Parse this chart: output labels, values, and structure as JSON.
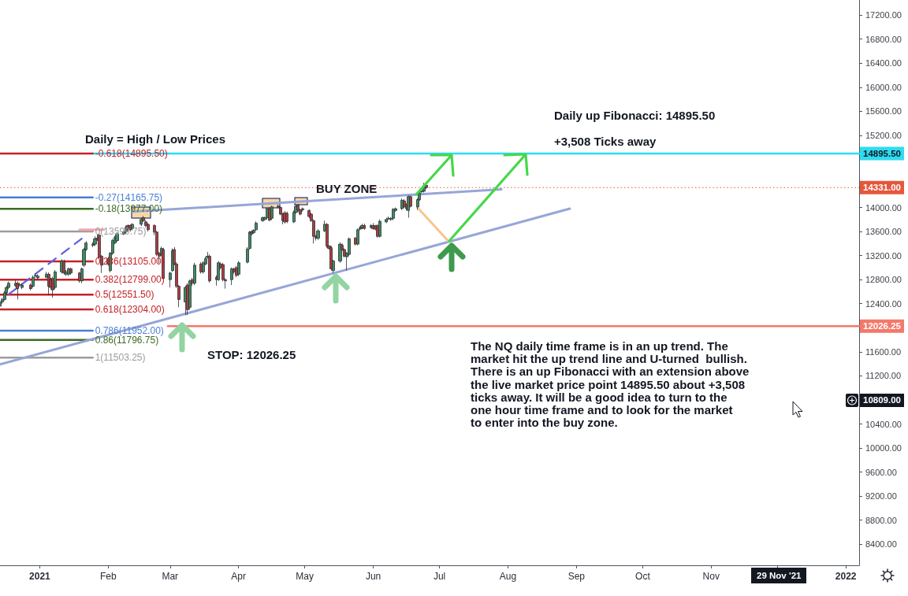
{
  "chart_data": {
    "type": "candlestick",
    "x": [
      "2020-12-14",
      "2020-12-15",
      "2020-12-16",
      "2020-12-17",
      "2020-12-18",
      "2020-12-21",
      "2020-12-22",
      "2020-12-23",
      "2020-12-24",
      "2020-12-28",
      "2020-12-29",
      "2020-12-30",
      "2020-12-31",
      "2021-01-04",
      "2021-01-05",
      "2021-01-06",
      "2021-01-07",
      "2021-01-08",
      "2021-01-11",
      "2021-01-12",
      "2021-01-13",
      "2021-01-14",
      "2021-01-15",
      "2021-01-19",
      "2021-01-20",
      "2021-01-21",
      "2021-01-22",
      "2021-01-25",
      "2021-01-26",
      "2021-01-27",
      "2021-01-28",
      "2021-01-29",
      "2021-02-01",
      "2021-02-02",
      "2021-02-03",
      "2021-02-04",
      "2021-02-05",
      "2021-02-08",
      "2021-02-09",
      "2021-02-10",
      "2021-02-11",
      "2021-02-12",
      "2021-02-16",
      "2021-02-17",
      "2021-02-18",
      "2021-02-19",
      "2021-02-22",
      "2021-02-23",
      "2021-02-24",
      "2021-02-25",
      "2021-02-26",
      "2021-03-01",
      "2021-03-02",
      "2021-03-03",
      "2021-03-04",
      "2021-03-05",
      "2021-03-08",
      "2021-03-09",
      "2021-03-10",
      "2021-03-11",
      "2021-03-12",
      "2021-03-15",
      "2021-03-16",
      "2021-03-17",
      "2021-03-18",
      "2021-03-19",
      "2021-03-22",
      "2021-03-23",
      "2021-03-24",
      "2021-03-25",
      "2021-03-26",
      "2021-03-29",
      "2021-03-30",
      "2021-03-31",
      "2021-04-01",
      "2021-04-05",
      "2021-04-06",
      "2021-04-07",
      "2021-04-08",
      "2021-04-09",
      "2021-04-12",
      "2021-04-13",
      "2021-04-14",
      "2021-04-15",
      "2021-04-16",
      "2021-04-19",
      "2021-04-20",
      "2021-04-21",
      "2021-04-22",
      "2021-04-23",
      "2021-04-26",
      "2021-04-27",
      "2021-04-28",
      "2021-04-29",
      "2021-04-30",
      "2021-05-03",
      "2021-05-04",
      "2021-05-05",
      "2021-05-06",
      "2021-05-07",
      "2021-05-10",
      "2021-05-11",
      "2021-05-12",
      "2021-05-13",
      "2021-05-14",
      "2021-05-17",
      "2021-05-18",
      "2021-05-19",
      "2021-05-20",
      "2021-05-21",
      "2021-05-24",
      "2021-05-25",
      "2021-05-26",
      "2021-05-27",
      "2021-05-28",
      "2021-05-31",
      "2021-06-01",
      "2021-06-02",
      "2021-06-03",
      "2021-06-04",
      "2021-06-07",
      "2021-06-08",
      "2021-06-09",
      "2021-06-10",
      "2021-06-11",
      "2021-06-14",
      "2021-06-15",
      "2021-06-16",
      "2021-06-17",
      "2021-06-18",
      "2021-06-21",
      "2021-06-22",
      "2021-06-23",
      "2021-06-24",
      "2021-06-25"
    ],
    "ohlc": [
      [
        12360,
        12460,
        12330,
        12430
      ],
      [
        12430,
        12500,
        12400,
        12470
      ],
      [
        12470,
        12610,
        12450,
        12580
      ],
      [
        12580,
        12700,
        12560,
        12670
      ],
      [
        12670,
        12770,
        12640,
        12740
      ],
      [
        12700,
        12790,
        12680,
        12740
      ],
      [
        12740,
        12770,
        12470,
        12650
      ],
      [
        12710,
        12750,
        12680,
        12720
      ],
      [
        12670,
        12740,
        12640,
        12710
      ],
      [
        12710,
        12740,
        12620,
        12650
      ],
      [
        12690,
        12870,
        12670,
        12840
      ],
      [
        12860,
        12900,
        12830,
        12870
      ],
      [
        12830,
        12890,
        12800,
        12860
      ],
      [
        12840,
        12930,
        12820,
        12890
      ],
      [
        12890,
        12920,
        12540,
        12690
      ],
      [
        12800,
        12830,
        12630,
        12670
      ],
      [
        12820,
        12850,
        12500,
        12630
      ],
      [
        12670,
        12960,
        12640,
        12930
      ],
      [
        12930,
        13140,
        12900,
        13110
      ],
      [
        13110,
        13130,
        12880,
        12910
      ],
      [
        12890,
        12960,
        12860,
        12930
      ],
      [
        12890,
        13000,
        12860,
        12980
      ],
      [
        12980,
        13000,
        12880,
        12910
      ],
      [
        12910,
        12930,
        12750,
        12780
      ],
      [
        12780,
        13000,
        12740,
        12980
      ],
      [
        13040,
        13330,
        13010,
        13300
      ],
      [
        13300,
        13440,
        13280,
        13410
      ],
      [
        13370,
        13420,
        13340,
        13390
      ],
      [
        13390,
        13520,
        13360,
        13480
      ],
      [
        13470,
        13560,
        13440,
        13490
      ],
      [
        13540,
        13570,
        13140,
        13170
      ],
      [
        13190,
        13210,
        12910,
        13040
      ],
      [
        13150,
        13180,
        13030,
        13060
      ],
      [
        12950,
        13260,
        12920,
        13240
      ],
      [
        13240,
        13480,
        13210,
        13450
      ],
      [
        13410,
        13530,
        13390,
        13500
      ],
      [
        13450,
        13590,
        13430,
        13560
      ],
      [
        13560,
        13610,
        13540,
        13590
      ],
      [
        13590,
        13700,
        13560,
        13670
      ],
      [
        13700,
        13720,
        13620,
        13650
      ],
      [
        13700,
        13720,
        13600,
        13630
      ],
      [
        13650,
        13740,
        13620,
        13720
      ],
      [
        13720,
        13830,
        13690,
        13800
      ],
      [
        13830,
        13860,
        13760,
        13780
      ],
      [
        13760,
        13790,
        13670,
        13700
      ],
      [
        13720,
        13740,
        13600,
        13630
      ],
      [
        13700,
        13720,
        13540,
        13590
      ],
      [
        13590,
        13610,
        13190,
        13220
      ],
      [
        13240,
        13260,
        13070,
        13190
      ],
      [
        13220,
        13350,
        13190,
        13320
      ],
      [
        13300,
        13330,
        12780,
        12820
      ],
      [
        12800,
        12930,
        12670,
        12910
      ],
      [
        12950,
        13320,
        12930,
        13280
      ],
      [
        13300,
        13340,
        13040,
        13060
      ],
      [
        13060,
        13090,
        12660,
        12690
      ],
      [
        12690,
        12710,
        12340,
        12470
      ],
      [
        12430,
        12700,
        12210,
        12670
      ],
      [
        12710,
        12740,
        12210,
        12300
      ],
      [
        12340,
        12800,
        12300,
        12780
      ],
      [
        12800,
        12830,
        12700,
        12740
      ],
      [
        12740,
        13080,
        12710,
        13040
      ],
      [
        13060,
        13090,
        12900,
        12930
      ],
      [
        12930,
        13110,
        12900,
        13080
      ],
      [
        13060,
        13180,
        13040,
        13150
      ],
      [
        13170,
        13260,
        13150,
        13190
      ],
      [
        13190,
        13220,
        12750,
        12780
      ],
      [
        12840,
        12870,
        12700,
        12800
      ],
      [
        12800,
        13110,
        12780,
        13080
      ],
      [
        13060,
        13090,
        12970,
        13000
      ],
      [
        13050,
        13080,
        12770,
        12800
      ],
      [
        12800,
        12820,
        12650,
        12780
      ],
      [
        12800,
        13000,
        12710,
        12980
      ],
      [
        12980,
        13000,
        12900,
        12930
      ],
      [
        13000,
        13030,
        12840,
        12870
      ],
      [
        12890,
        13110,
        12860,
        13080
      ],
      [
        13090,
        13340,
        13070,
        13310
      ],
      [
        13320,
        13610,
        13300,
        13590
      ],
      [
        13600,
        13620,
        13540,
        13560
      ],
      [
        13580,
        13640,
        13560,
        13620
      ],
      [
        13630,
        13770,
        13610,
        13740
      ],
      [
        13780,
        13850,
        13760,
        13830
      ],
      [
        13800,
        13850,
        13780,
        13830
      ],
      [
        13830,
        14000,
        13800,
        13980
      ],
      [
        13980,
        14010,
        13770,
        13790
      ],
      [
        13820,
        14030,
        13790,
        14010
      ],
      [
        14010,
        14050,
        13990,
        14020
      ],
      [
        14000,
        14020,
        13870,
        13890
      ],
      [
        13890,
        13910,
        13720,
        13780
      ],
      [
        13910,
        13940,
        13730,
        13760
      ],
      [
        13900,
        13930,
        13740,
        13770
      ],
      [
        13760,
        13950,
        13740,
        13920
      ],
      [
        13920,
        14050,
        13900,
        14020
      ],
      [
        14040,
        14060,
        13930,
        13960
      ],
      [
        13960,
        13980,
        13870,
        13890
      ],
      [
        13960,
        14000,
        13930,
        13980
      ],
      [
        13950,
        13970,
        13820,
        13850
      ],
      [
        13890,
        13910,
        13760,
        13780
      ],
      [
        13780,
        13800,
        13400,
        13520
      ],
      [
        13520,
        13540,
        13450,
        13490
      ],
      [
        13490,
        13640,
        13460,
        13610
      ],
      [
        13610,
        13780,
        13590,
        13720
      ],
      [
        13720,
        13740,
        13330,
        13360
      ],
      [
        13360,
        13370,
        13300,
        13320
      ],
      [
        13330,
        13360,
        12950,
        12980
      ],
      [
        12950,
        13130,
        12910,
        13110
      ],
      [
        13110,
        13420,
        13080,
        13390
      ],
      [
        13370,
        13400,
        13280,
        13300
      ],
      [
        13300,
        13320,
        13170,
        13190
      ],
      [
        13180,
        13260,
        12950,
        13240
      ],
      [
        13220,
        13500,
        13190,
        13480
      ],
      [
        13490,
        13510,
        13370,
        13390
      ],
      [
        13390,
        13650,
        13370,
        13630
      ],
      [
        13640,
        13690,
        13620,
        13660
      ],
      [
        13660,
        13730,
        13640,
        13700
      ],
      [
        13700,
        13730,
        13630,
        13650
      ],
      [
        13670,
        13720,
        13650,
        13700
      ],
      [
        13700,
        13740,
        13630,
        13650
      ],
      [
        13690,
        13710,
        13620,
        13640
      ],
      [
        13700,
        13720,
        13500,
        13520
      ],
      [
        13520,
        13800,
        13500,
        13770
      ],
      [
        13760,
        13830,
        13740,
        13800
      ],
      [
        13810,
        13850,
        13790,
        13820
      ],
      [
        13800,
        13840,
        13780,
        13820
      ],
      [
        13820,
        13990,
        13790,
        13970
      ],
      [
        13950,
        14000,
        13930,
        13980
      ],
      [
        13980,
        14150,
        13960,
        14120
      ],
      [
        14110,
        14140,
        13990,
        14010
      ],
      [
        14040,
        14070,
        13950,
        13980
      ],
      [
        13950,
        14200,
        13830,
        14180
      ],
      [
        14180,
        14200,
        14000,
        14020
      ],
      [
        14010,
        14150,
        13960,
        14130
      ],
      [
        14130,
        14260,
        14110,
        14240
      ],
      [
        14260,
        14300,
        14240,
        14280
      ],
      [
        14270,
        14410,
        14250,
        14350
      ],
      [
        14370,
        14400,
        14310,
        14331
      ]
    ],
    "colors": [
      "#3d8c5c",
      "#3d8c5c",
      "#3d8c5c",
      "#3d8c5c",
      "#3d8c5c",
      "#3d8c5c",
      "#b03c3c",
      "#3d8c5c",
      "#3d8c5c",
      "#b03c3c",
      "#3d8c5c",
      "#3d8c5c",
      "#3d8c5c",
      "#3d8c5c",
      "#b03c3c",
      "#b03c3c",
      "#b03c3c",
      "#3d8c5c",
      "#3d8c5c",
      "#b03c3c",
      "#3d8c5c",
      "#3d8c5c",
      "#b03c3c",
      "#b03c3c",
      "#3d8c5c",
      "#3d8c5c",
      "#3d8c5c",
      "#3d8c5c",
      "#3d8c5c",
      "#3d8c5c",
      "#b03c3c",
      "#b03c3c",
      "#b03c3c",
      "#3d8c5c",
      "#3d8c5c",
      "#3d8c5c",
      "#3d8c5c",
      "#3d8c5c",
      "#3d8c5c",
      "#b03c3c",
      "#b03c3c",
      "#3d8c5c",
      "#3d8c5c",
      "#b03c3c",
      "#b03c3c",
      "#b03c3c",
      "#b03c3c",
      "#b03c3c",
      "#b03c3c",
      "#3d8c5c",
      "#b03c3c",
      "#3d8c5c",
      "#3d8c5c",
      "#b03c3c",
      "#b03c3c",
      "#b03c3c",
      "#3d8c5c",
      "#b03c3c",
      "#3d8c5c",
      "#b03c3c",
      "#3d8c5c",
      "#b03c3c",
      "#3d8c5c",
      "#3d8c5c",
      "#3d8c5c",
      "#b03c3c",
      "#b03c3c",
      "#3d8c5c",
      "#b03c3c",
      "#b03c3c",
      "#b03c3c",
      "#3d8c5c",
      "#b03c3c",
      "#b03c3c",
      "#3d8c5c",
      "#3d8c5c",
      "#3d8c5c",
      "#b03c3c",
      "#3d8c5c",
      "#3d8c5c",
      "#3d8c5c",
      "#3d8c5c",
      "#3d8c5c",
      "#b03c3c",
      "#3d8c5c",
      "#3d8c5c",
      "#b03c3c",
      "#b03c3c",
      "#b03c3c",
      "#b03c3c",
      "#3d8c5c",
      "#3d8c5c",
      "#b03c3c",
      "#b03c3c",
      "#3d8c5c",
      "#b03c3c",
      "#b03c3c",
      "#b03c3c",
      "#b03c3c",
      "#3d8c5c",
      "#3d8c5c",
      "#b03c3c",
      "#b03c3c",
      "#b03c3c",
      "#3d8c5c",
      "#3d8c5c",
      "#b03c3c",
      "#b03c3c",
      "#3d8c5c",
      "#3d8c5c",
      "#b03c3c",
      "#3d8c5c",
      "#3d8c5c",
      "#3d8c5c",
      "#b03c3c",
      "#3d8c5c",
      "#b03c3c",
      "#b03c3c",
      "#b03c3c",
      "#3d8c5c",
      "#3d8c5c",
      "#3d8c5c",
      "#3d8c5c",
      "#3d8c5c",
      "#3d8c5c",
      "#3d8c5c",
      "#b03c3c",
      "#b03c3c",
      "#3d8c5c",
      "#b03c3c",
      "#3d8c5c",
      "#3d8c5c",
      "#3d8c5c",
      "#3d8c5c",
      "#b03c3c"
    ],
    "series": [
      {
        "type": "line",
        "name": "-0.618(14895.50)",
        "color": "#c62026",
        "x": [
          "2020-12-14",
          "2021-01-25"
        ],
        "values": [
          14895.5,
          14895.5
        ]
      },
      {
        "type": "line",
        "name": "-0.27(14165.75)",
        "color": "#4a7fd4",
        "x": [
          "2020-12-14",
          "2021-01-25"
        ],
        "values": [
          14165.75,
          14165.75
        ]
      },
      {
        "type": "line",
        "name": "-0.18(13977.00)",
        "color": "#3e6b22",
        "x": [
          "2020-12-14",
          "2021-01-25"
        ],
        "values": [
          13977,
          13977
        ]
      },
      {
        "type": "line",
        "name": "0(13599.75)",
        "color": "#9c9c9c",
        "x": [
          "2020-12-14",
          "2021-01-25"
        ],
        "values": [
          13599.75,
          13599.75
        ]
      },
      {
        "type": "line",
        "name": "0.236(13105.00)",
        "color": "#c62026",
        "x": [
          "2020-12-14",
          "2021-01-25"
        ],
        "values": [
          13105,
          13105
        ]
      },
      {
        "type": "line",
        "name": "0.382(12799.00)",
        "color": "#c62026",
        "x": [
          "2020-12-14",
          "2021-01-25"
        ],
        "values": [
          12799,
          12799
        ]
      },
      {
        "type": "line",
        "name": "0.5(12551.50)",
        "color": "#c62026",
        "x": [
          "2020-12-14",
          "2021-01-25"
        ],
        "values": [
          12551.5,
          12551.5
        ]
      },
      {
        "type": "line",
        "name": "0.618(12304.00)",
        "color": "#c62026",
        "x": [
          "2020-12-14",
          "2021-01-25"
        ],
        "values": [
          12304,
          12304
        ]
      },
      {
        "type": "line",
        "name": "0.786(11952.00)",
        "color": "#4a7fd4",
        "x": [
          "2020-12-14",
          "2021-01-25"
        ],
        "values": [
          11952,
          11952
        ]
      },
      {
        "type": "line",
        "name": "0.86(11796.75)",
        "color": "#3e6b22",
        "x": [
          "2020-12-14",
          "2021-01-25"
        ],
        "values": [
          11796.75,
          11796.75
        ]
      },
      {
        "type": "line",
        "name": "1(11503.25)",
        "color": "#9c9c9c",
        "x": [
          "2020-12-14",
          "2021-01-25"
        ],
        "values": [
          11503.25,
          11503.25
        ]
      },
      {
        "type": "line",
        "name": "14895.50",
        "color": "#2fdcf0",
        "x": [
          "2021-01-25",
          "2022-01-07"
        ],
        "values": [
          14895.5,
          14895.5
        ]
      },
      {
        "type": "line",
        "name": "12026.25",
        "color": "#f3796b",
        "x": [
          "2021-02-28",
          "2022-01-07"
        ],
        "values": [
          12026.25,
          12026.25
        ]
      },
      {
        "type": "line",
        "color": "#97a6d8",
        "x": [
          "2021-02-12",
          "2021-07-29"
        ],
        "values": [
          13930,
          14300
        ]
      },
      {
        "type": "line",
        "color": "#97a6d8",
        "x": [
          "2020-12-14",
          "2021-08-29"
        ],
        "values": [
          11390,
          13980
        ]
      },
      {
        "type": "line",
        "color": "#5f5fe0",
        "line_style": "dashed",
        "x": [
          "2020-12-18",
          "2021-01-20"
        ],
        "values": [
          12560,
          13480
        ]
      },
      {
        "type": "line",
        "color": "#f7c690",
        "x": [
          "2021-06-21",
          "2021-07-05"
        ],
        "values": [
          14000,
          13440
        ]
      },
      {
        "type": "line",
        "color": "#f4a7b3",
        "x": [
          "2021-01-19",
          "2021-01-30"
        ],
        "values": [
          13630,
          13630
        ]
      }
    ],
    "ref_lines": [
      {
        "axis": "y",
        "value": 14331,
        "label": "14331.00",
        "color": "#e4573d",
        "line_style": "dotted"
      }
    ],
    "xlim": [
      "2020-12-14",
      "2022-01-07"
    ],
    "xticks": [
      {
        "value": "2021-01-01",
        "label": "2021"
      },
      {
        "value": "2021-02-01",
        "label": "Feb"
      },
      {
        "value": "2021-03-01",
        "label": "Mar"
      },
      {
        "value": "2021-04-01",
        "label": "Apr"
      },
      {
        "value": "2021-05-01",
        "label": "May"
      },
      {
        "value": "2021-06-01",
        "label": "Jun"
      },
      {
        "value": "2021-07-01",
        "label": "Jul"
      },
      {
        "value": "2021-08-01",
        "label": "Aug"
      },
      {
        "value": "2021-09-01",
        "label": "Sep"
      },
      {
        "value": "2021-10-01",
        "label": "Oct"
      },
      {
        "value": "2021-11-01",
        "label": "Nov"
      },
      {
        "value": "2021-12-01",
        "label": null
      },
      {
        "value": "2022-01-01",
        "label": "2022"
      }
    ],
    "ylim": [
      8050,
      17450
    ],
    "yticks": [
      {
        "value": 8400,
        "label": "8400.00"
      },
      {
        "value": 8800,
        "label": "8800.00"
      },
      {
        "value": 9200,
        "label": "9200.00"
      },
      {
        "value": 9600,
        "label": "9600.00"
      },
      {
        "value": 10000,
        "label": "10000.00"
      },
      {
        "value": 10400,
        "label": "10400.00"
      },
      {
        "value": 10800,
        "label": null
      },
      {
        "value": 11200,
        "label": "11200.00"
      },
      {
        "value": 11600,
        "label": "11600.00"
      },
      {
        "value": 12000,
        "label": null
      },
      {
        "value": 12400,
        "label": "12400.00"
      },
      {
        "value": 12800,
        "label": "12800.00"
      },
      {
        "value": 13200,
        "label": "13200.00"
      },
      {
        "value": 13600,
        "label": "13600.00"
      },
      {
        "value": 14000,
        "label": "14000.00"
      },
      {
        "value": 14400,
        "label": null
      },
      {
        "value": 14800,
        "label": null
      },
      {
        "value": 15200,
        "label": "15200.00"
      },
      {
        "value": 15600,
        "label": "15600.00"
      },
      {
        "value": 16000,
        "label": "16000.00"
      },
      {
        "value": 16400,
        "label": "16400.00"
      },
      {
        "value": 16800,
        "label": "16800.00"
      },
      {
        "value": 17200,
        "label": "17200.00"
      }
    ],
    "annotations": [
      "Daily = High / Low Prices",
      "BUY ZONE",
      "STOP: 12026.25",
      "Daily up Fibonacci: 14895.50",
      "+3,508 Ticks away",
      "The NQ daily time frame is in an up trend. The\nmarket hit the up trend line and U-turned  bullish.\nThere is an up Fibonacci with an extension above\nthe live market price point 14895.50 about +3,508\nticks away. It will be a good idea to turn to the\none hour time frame and to look for the market\nto enter into the buy zone.",
      "10809.00",
      "29 Nov '21"
    ]
  }
}
